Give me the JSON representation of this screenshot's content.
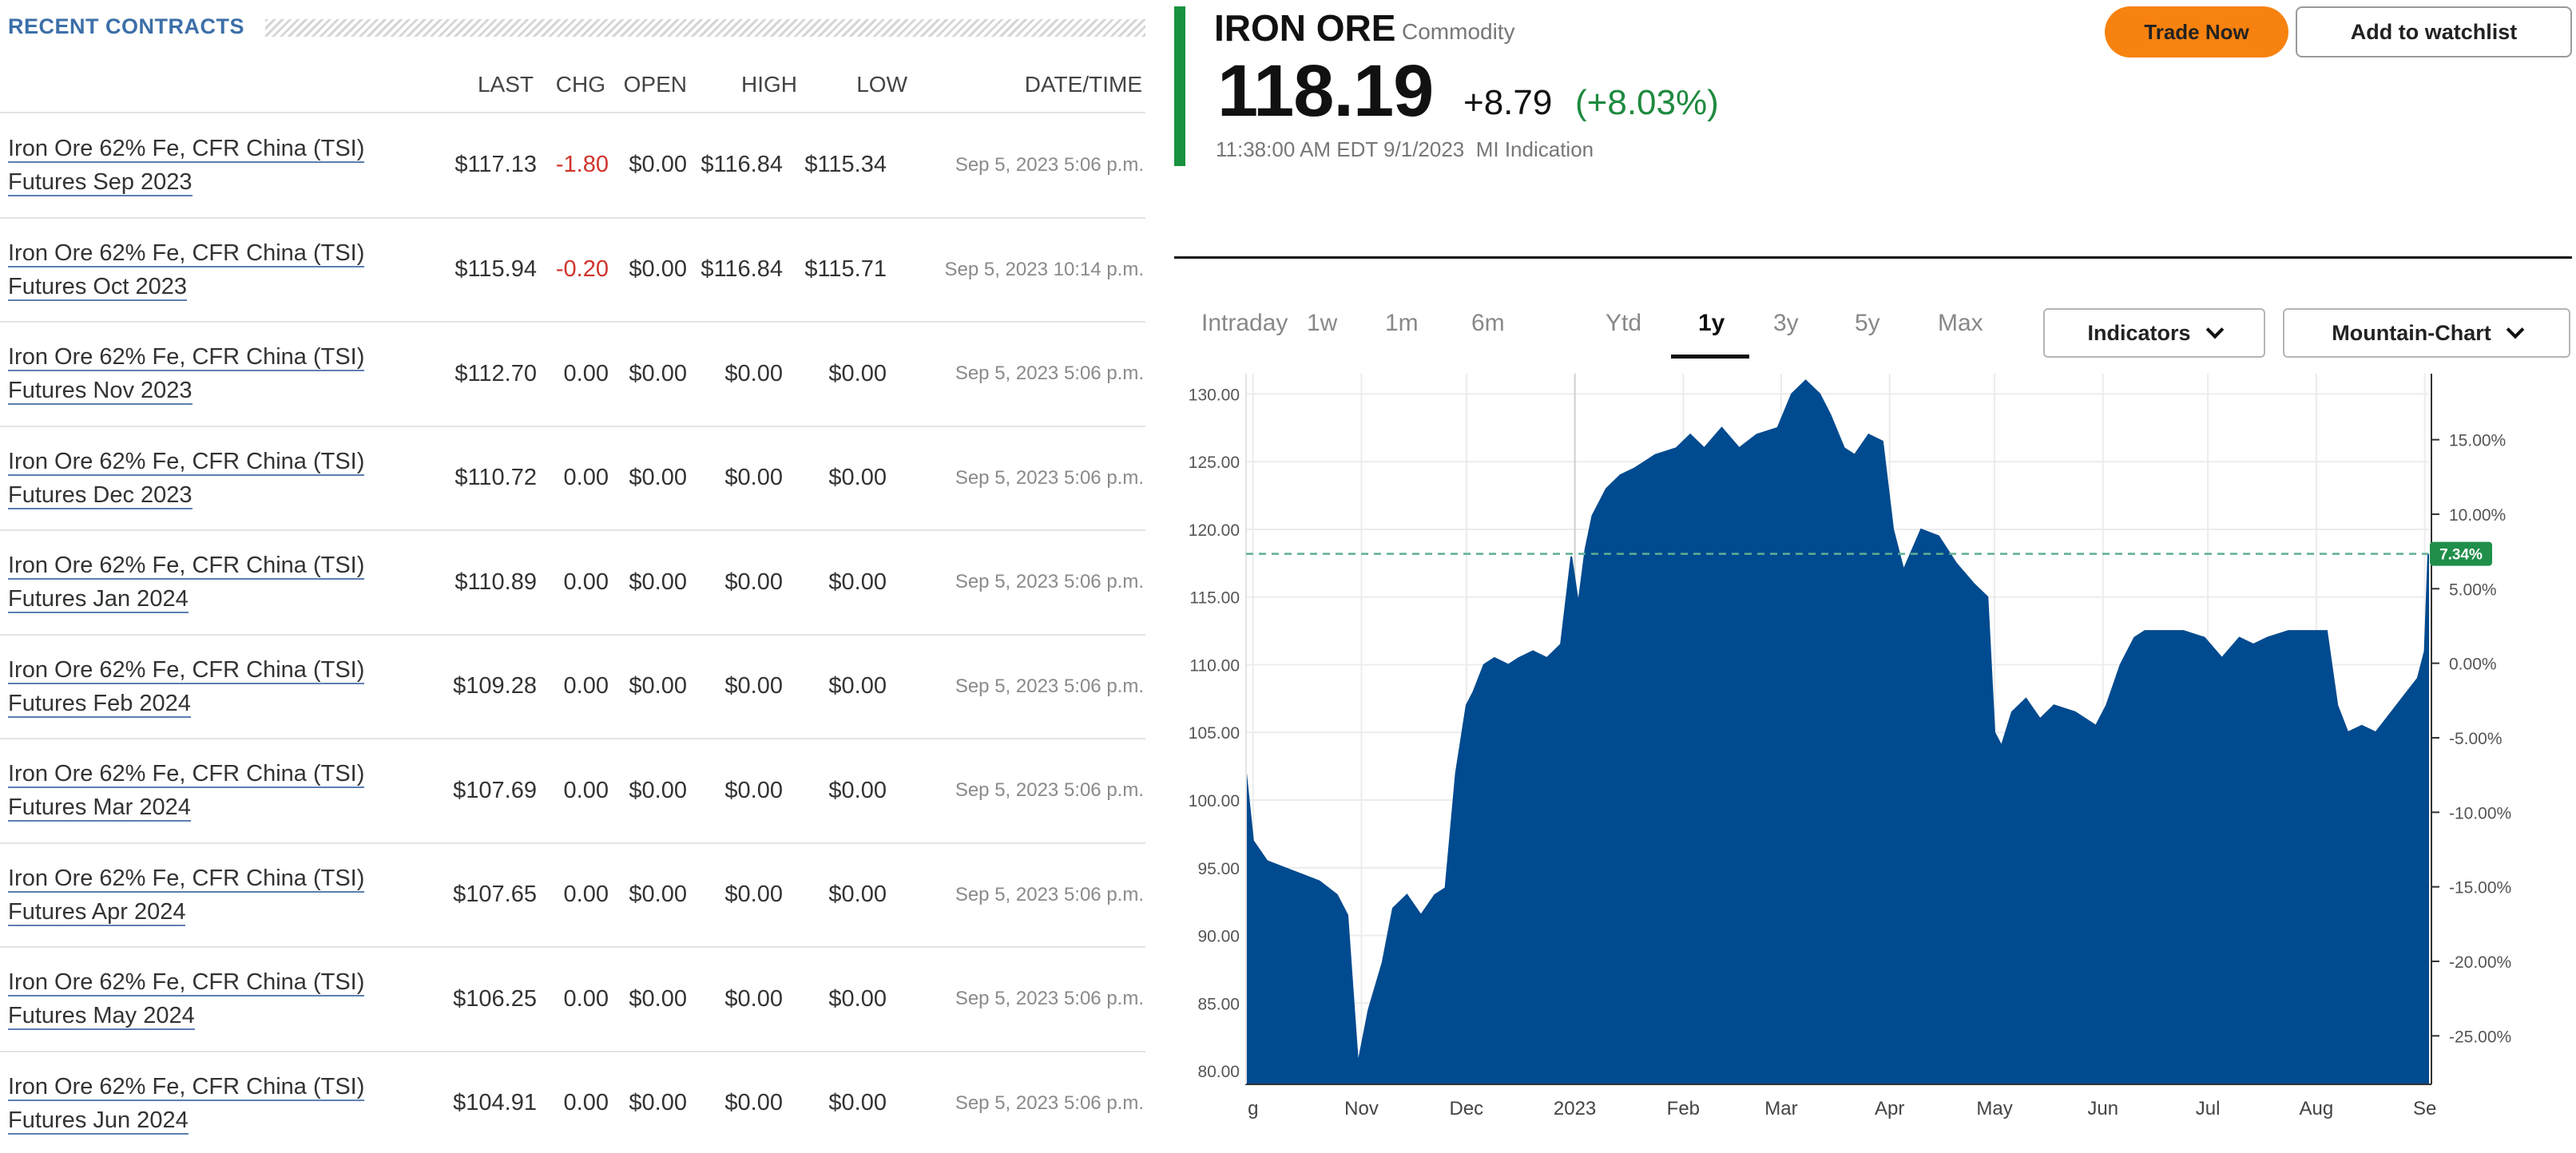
{
  "recent_contracts": {
    "title": "RECENT CONTRACTS",
    "columns": [
      "LAST",
      "CHG",
      "OPEN",
      "HIGH",
      "LOW",
      "DATE/TIME"
    ],
    "rows": [
      {
        "name1": "Iron Ore 62% Fe, CFR China (TSI)",
        "name2": "Futures Sep 2023",
        "last": "$117.13",
        "chg": "-1.80",
        "open": "$0.00",
        "high": "$116.84",
        "low": "$115.34",
        "datetime": "Sep 5, 2023 5:06 p.m."
      },
      {
        "name1": "Iron Ore 62% Fe, CFR China (TSI)",
        "name2": "Futures Oct 2023",
        "last": "$115.94",
        "chg": "-0.20",
        "open": "$0.00",
        "high": "$116.84",
        "low": "$115.71",
        "datetime": "Sep 5, 2023 10:14 p.m."
      },
      {
        "name1": "Iron Ore 62% Fe, CFR China (TSI)",
        "name2": "Futures Nov 2023",
        "last": "$112.70",
        "chg": "0.00",
        "open": "$0.00",
        "high": "$0.00",
        "low": "$0.00",
        "datetime": "Sep 5, 2023 5:06 p.m."
      },
      {
        "name1": "Iron Ore 62% Fe, CFR China (TSI)",
        "name2": "Futures Dec 2023",
        "last": "$110.72",
        "chg": "0.00",
        "open": "$0.00",
        "high": "$0.00",
        "low": "$0.00",
        "datetime": "Sep 5, 2023 5:06 p.m."
      },
      {
        "name1": "Iron Ore 62% Fe, CFR China (TSI)",
        "name2": "Futures Jan 2024",
        "last": "$110.89",
        "chg": "0.00",
        "open": "$0.00",
        "high": "$0.00",
        "low": "$0.00",
        "datetime": "Sep 5, 2023 5:06 p.m."
      },
      {
        "name1": "Iron Ore 62% Fe, CFR China (TSI)",
        "name2": "Futures Feb 2024",
        "last": "$109.28",
        "chg": "0.00",
        "open": "$0.00",
        "high": "$0.00",
        "low": "$0.00",
        "datetime": "Sep 5, 2023 5:06 p.m."
      },
      {
        "name1": "Iron Ore 62% Fe, CFR China (TSI)",
        "name2": "Futures Mar 2024",
        "last": "$107.69",
        "chg": "0.00",
        "open": "$0.00",
        "high": "$0.00",
        "low": "$0.00",
        "datetime": "Sep 5, 2023 5:06 p.m."
      },
      {
        "name1": "Iron Ore 62% Fe, CFR China (TSI)",
        "name2": "Futures Apr 2024",
        "last": "$107.65",
        "chg": "0.00",
        "open": "$0.00",
        "high": "$0.00",
        "low": "$0.00",
        "datetime": "Sep 5, 2023 5:06 p.m."
      },
      {
        "name1": "Iron Ore 62% Fe, CFR China (TSI)",
        "name2": "Futures May 2024",
        "last": "$106.25",
        "chg": "0.00",
        "open": "$0.00",
        "high": "$0.00",
        "low": "$0.00",
        "datetime": "Sep 5, 2023 5:06 p.m."
      },
      {
        "name1": "Iron Ore 62% Fe, CFR China (TSI)",
        "name2": "Futures Jun 2024",
        "last": "$104.91",
        "chg": "0.00",
        "open": "$0.00",
        "high": "$0.00",
        "low": "$0.00",
        "datetime": "Sep 5, 2023 5:06 p.m."
      }
    ]
  },
  "quote": {
    "name": "IRON ORE",
    "type": "Commodity",
    "price": "118.19",
    "change": "+8.79",
    "change_pct": "(+8.03%)",
    "timestamp": "11:38:00 AM EDT 9/1/2023",
    "source": "MI Indication",
    "trade_label": "Trade Now",
    "watchlist_label": "Add to watchlist",
    "accent_color": "#19923f",
    "trade_color": "#f7820f"
  },
  "timeframes": {
    "items": [
      "Intraday",
      "1w",
      "1m",
      "6m",
      "Ytd",
      "1y",
      "3y",
      "5y",
      "Max"
    ],
    "active": "1y"
  },
  "controls": {
    "indicators_label": "Indicators",
    "charttype_label": "Mountain-Chart"
  },
  "chart_data": {
    "type": "area",
    "color": "#004a8f",
    "ylim": [
      79,
      131.5
    ],
    "y_ticks": [
      "80.00",
      "85.00",
      "90.00",
      "95.00",
      "100.00",
      "105.00",
      "110.00",
      "115.00",
      "120.00",
      "125.00",
      "130.00"
    ],
    "y_right_ticks": [
      "15.00%",
      "10.00%",
      "5.00%",
      "0.00%",
      "-5.00%",
      "-10.00%",
      "-15.00%",
      "-20.00%",
      "-25.00%"
    ],
    "x_ticks": [
      "g",
      "Nov",
      "Dec",
      "2023",
      "Feb",
      "Mar",
      "Apr",
      "May",
      "Jun",
      "Jul",
      "Aug",
      "Se"
    ],
    "reference_value": 118.19,
    "reference_label": "7.34%",
    "x": [
      "2022-09-29",
      "2022-10-01",
      "2022-10-05",
      "2022-10-10",
      "2022-10-15",
      "2022-10-20",
      "2022-10-25",
      "2022-10-28",
      "2022-10-31",
      "2022-11-03",
      "2022-11-07",
      "2022-11-10",
      "2022-11-14",
      "2022-11-18",
      "2022-11-22",
      "2022-11-25",
      "2022-11-28",
      "2022-12-01",
      "2022-12-03",
      "2022-12-06",
      "2022-12-09",
      "2022-12-13",
      "2022-12-16",
      "2022-12-20",
      "2022-12-24",
      "2022-12-28",
      "2022-12-31",
      "2023-01-02",
      "2023-01-04",
      "2023-01-06",
      "2023-01-10",
      "2023-01-14",
      "2023-01-18",
      "2023-01-24",
      "2023-01-30",
      "2023-02-03",
      "2023-02-07",
      "2023-02-12",
      "2023-02-17",
      "2023-02-22",
      "2023-02-28",
      "2023-03-04",
      "2023-03-08",
      "2023-03-12",
      "2023-03-15",
      "2023-03-19",
      "2023-03-22",
      "2023-03-26",
      "2023-03-30",
      "2023-04-02",
      "2023-04-05",
      "2023-04-10",
      "2023-04-15",
      "2023-04-20",
      "2023-04-25",
      "2023-04-29",
      "2023-05-01",
      "2023-05-03",
      "2023-05-06",
      "2023-05-10",
      "2023-05-14",
      "2023-05-18",
      "2023-05-24",
      "2023-05-30",
      "2023-06-02",
      "2023-06-06",
      "2023-06-10",
      "2023-06-13",
      "2023-06-18",
      "2023-06-24",
      "2023-06-30",
      "2023-07-05",
      "2023-07-10",
      "2023-07-14",
      "2023-07-18",
      "2023-07-24",
      "2023-07-30",
      "2023-08-04",
      "2023-08-07",
      "2023-08-10",
      "2023-08-14",
      "2023-08-18",
      "2023-08-24",
      "2023-08-30",
      "2023-09-01",
      "2023-09-02"
    ],
    "y": [
      102.0,
      97.0,
      95.5,
      95.0,
      94.5,
      94.0,
      93.0,
      91.5,
      80.5,
      84.5,
      88.0,
      92.0,
      93.0,
      91.5,
      93.0,
      93.5,
      102.0,
      107.0,
      108.0,
      110.0,
      110.5,
      110.0,
      110.5,
      111.0,
      110.5,
      111.5,
      118.0,
      114.5,
      118.5,
      121.0,
      123.0,
      124.0,
      124.5,
      125.5,
      126.0,
      127.0,
      126.0,
      127.5,
      126.0,
      127.0,
      127.5,
      130.0,
      131.0,
      130.0,
      128.5,
      126.0,
      125.5,
      127.0,
      126.5,
      120.0,
      117.0,
      120.0,
      119.5,
      117.5,
      116.0,
      115.0,
      105.0,
      104.0,
      106.5,
      107.5,
      106.0,
      107.0,
      106.5,
      105.5,
      107.0,
      110.0,
      112.0,
      112.5,
      112.5,
      112.5,
      112.0,
      110.5,
      112.0,
      111.5,
      112.0,
      112.5,
      112.5,
      112.5,
      107.0,
      105.0,
      105.5,
      105.0,
      107.0,
      109.0,
      111.0,
      118.19
    ]
  }
}
